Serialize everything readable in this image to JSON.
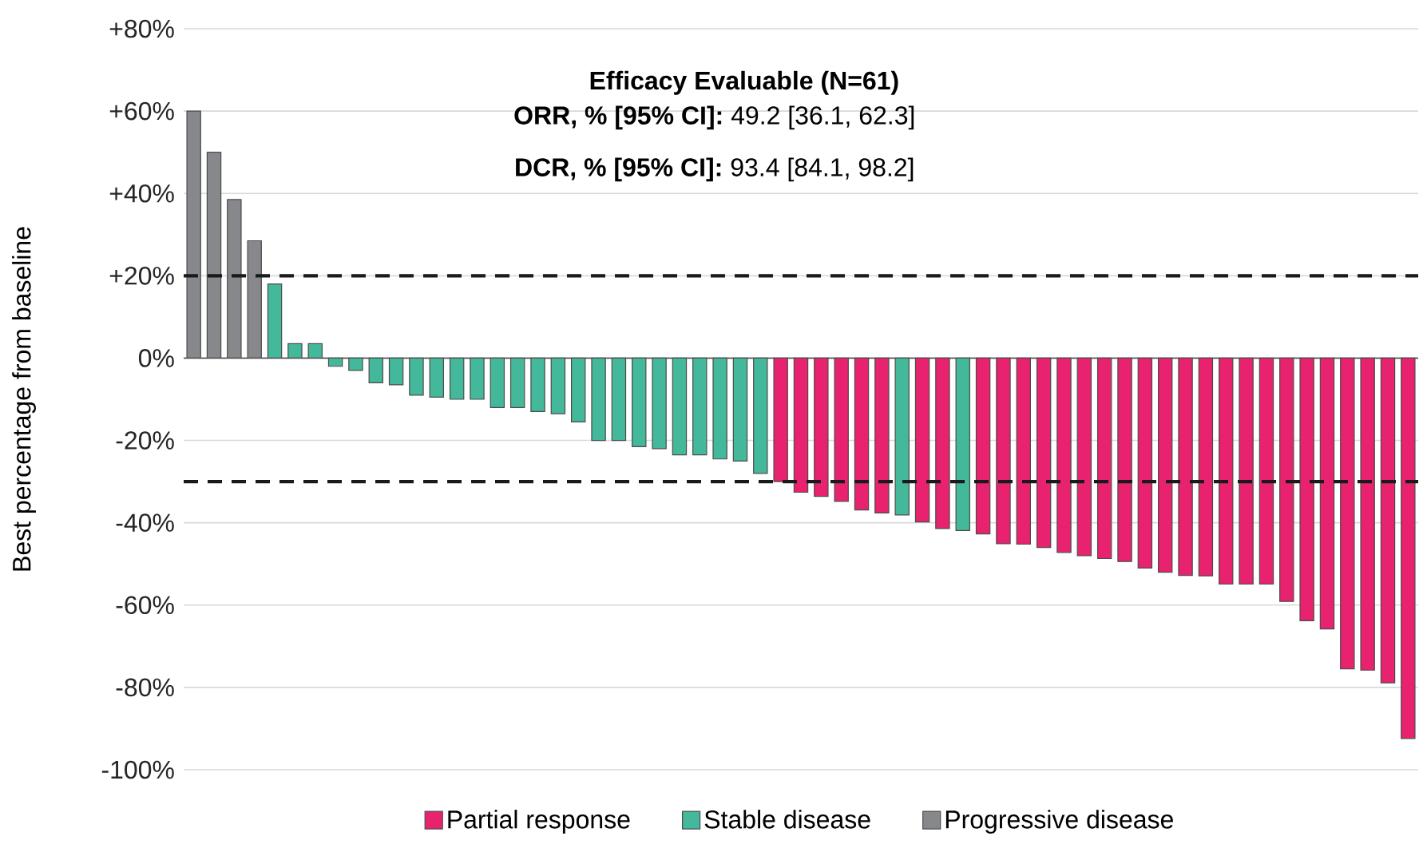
{
  "chart_data": {
    "type": "bar",
    "title": "Efficacy Evaluable (N=61)",
    "annotations": [
      "**ORR, % [95% CI]:**  49.2   [36.1, 62.3]",
      "**DCR, % [95% CI]:**  93.4   [84.1, 98.2]"
    ],
    "ylabel": "Best percentage from baseline",
    "categories": [
      null,
      null,
      null,
      null,
      null,
      null,
      null,
      null,
      null,
      null,
      null,
      null,
      null,
      null,
      null,
      null,
      null,
      null,
      null,
      null,
      null,
      null,
      null,
      null,
      null,
      null,
      null,
      null,
      null,
      null,
      null,
      null,
      null,
      null,
      null,
      null,
      null,
      null,
      null,
      null,
      null,
      null,
      null,
      null,
      null,
      null,
      null,
      null,
      null,
      null,
      null,
      null,
      null,
      null,
      null,
      null,
      null,
      null,
      null,
      null,
      null
    ],
    "series": [
      {
        "name": "Partial response",
        "color": "#e8226e",
        "values": [
          null,
          null,
          null,
          null,
          null,
          null,
          null,
          null,
          null,
          null,
          null,
          null,
          null,
          null,
          null,
          null,
          null,
          null,
          null,
          null,
          null,
          null,
          null,
          null,
          null,
          null,
          null,
          null,
          null,
          -30,
          -32.6,
          -33.6,
          -34.8,
          -36.9,
          -37.6,
          null,
          -39.8,
          -41.4,
          null,
          -42.7,
          -45.1,
          -45.2,
          -46,
          -47.2,
          -48,
          -48.7,
          -49.4,
          -51,
          -52,
          -52.8,
          -52.9,
          -54.9,
          -54.9,
          -54.9,
          -59.1,
          -63.8,
          -65.8,
          -75.5,
          -75.8,
          -78.9,
          -92.4
        ]
      },
      {
        "name": "Stable disease",
        "color": "#43b89a",
        "values": [
          null,
          null,
          null,
          null,
          18,
          3.5,
          3.5,
          -2,
          -3,
          -6,
          -6.5,
          -9,
          -9.5,
          -10,
          -10,
          -12,
          -12,
          -13,
          -13.5,
          -15.5,
          -20,
          -20,
          -21.5,
          -22,
          -23.5,
          -23.5,
          -24.5,
          -25,
          -28,
          null,
          null,
          null,
          null,
          null,
          null,
          -38.1,
          null,
          null,
          -41.9,
          null,
          null,
          null,
          null,
          null,
          null,
          null,
          null,
          null,
          null,
          null,
          null,
          null,
          null,
          null,
          null,
          null,
          null,
          null,
          null,
          null,
          null
        ]
      },
      {
        "name": "Progressive disease",
        "color": "#87888b",
        "values": [
          60,
          50,
          38.5,
          28.5,
          null,
          null,
          null,
          null,
          null,
          null,
          null,
          null,
          null,
          null,
          null,
          null,
          null,
          null,
          null,
          null,
          null,
          null,
          null,
          null,
          null,
          null,
          null,
          null,
          null,
          null,
          null,
          null,
          null,
          null,
          null,
          null,
          null,
          null,
          null,
          null,
          null,
          null,
          null,
          null,
          null,
          null,
          null,
          null,
          null,
          null,
          null,
          null,
          null,
          null,
          null,
          null,
          null,
          null,
          null,
          null,
          null
        ]
      }
    ],
    "ylim": [
      -100,
      80
    ],
    "yticks": [
      {
        "value": 80,
        "label": "+80%"
      },
      {
        "value": 60,
        "label": "+60%"
      },
      {
        "value": 40,
        "label": "+40%"
      },
      {
        "value": 20,
        "label": "+20%"
      },
      {
        "value": 0,
        "label": "0%"
      },
      {
        "value": -20,
        "label": "-20%"
      },
      {
        "value": -40,
        "label": "-40%"
      },
      {
        "value": -60,
        "label": "-60%"
      },
      {
        "value": -80,
        "label": "-80%"
      },
      {
        "value": -100,
        "label": "-100%"
      }
    ],
    "grid": "y",
    "legend": "bottom",
    "ref_lines": [
      {
        "axis": "y",
        "value": 20,
        "line_style": "dashed",
        "color": "#1a1a1a"
      },
      {
        "axis": "y",
        "value": -30,
        "line_style": "dashed",
        "color": "#1a1a1a"
      }
    ]
  }
}
